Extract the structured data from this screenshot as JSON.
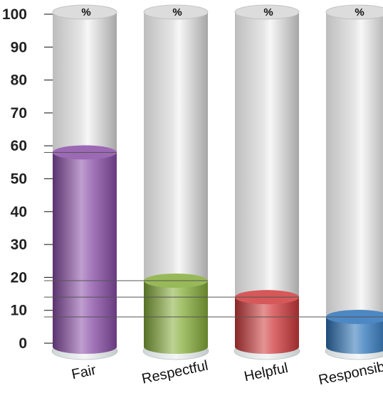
{
  "chart_data": {
    "type": "bar",
    "categories": [
      "Fair",
      "Respectful",
      "Helpful",
      "Responsible"
    ],
    "values": [
      58,
      19,
      14,
      8
    ],
    "cap_label": "%",
    "ylim": [
      0,
      100
    ],
    "yticks": [
      0,
      10,
      20,
      30,
      40,
      50,
      60,
      70,
      80,
      90,
      100
    ],
    "grid": false,
    "colors": [
      "#8a4ea8",
      "#86ad3a",
      "#cf3a3c",
      "#2c73b8"
    ]
  }
}
